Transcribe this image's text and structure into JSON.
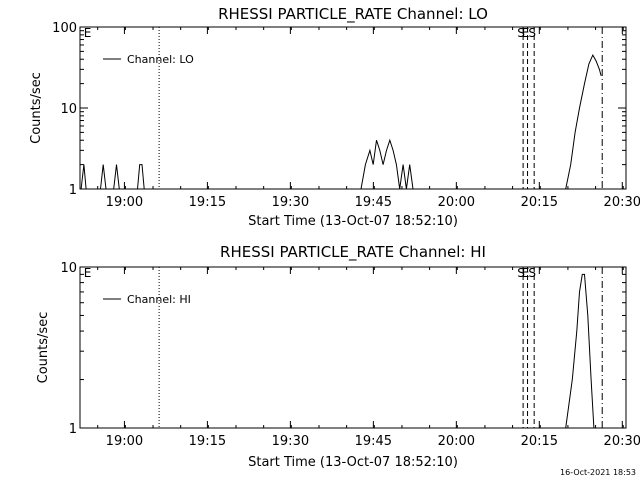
{
  "chart_data": [
    {
      "type": "line",
      "title": "RHESSI PARTICLE_RATE Channel: LO",
      "xlabel": "Start Time (13-Oct-07 18:52:10)",
      "ylabel": "Counts/sec",
      "yscale": "log",
      "ylim": [
        1,
        100
      ],
      "xlim_minutes": [
        -0.2,
        98.5
      ],
      "x_unit": "minutes since 18:52:10",
      "xticks": [
        {
          "label": "19:00",
          "value": 7.83
        },
        {
          "label": "19:15",
          "value": 22.83
        },
        {
          "label": "19:30",
          "value": 37.83
        },
        {
          "label": "19:45",
          "value": 52.83
        },
        {
          "label": "20:00",
          "value": 67.83
        },
        {
          "label": "20:15",
          "value": 82.83
        },
        {
          "label": "20:30",
          "value": 97.83
        }
      ],
      "yticks": [
        {
          "label": "1",
          "value": 1
        },
        {
          "label": "10",
          "value": 10
        },
        {
          "label": "100",
          "value": 100
        }
      ],
      "legend": {
        "placement": "top-left",
        "entries": [
          "Channel: LO"
        ]
      },
      "markers": [
        {
          "label": "E",
          "x": 0.3,
          "style": "none"
        },
        {
          "label": "",
          "x": 14.1,
          "style": "dotted"
        },
        {
          "label": "S",
          "x": 79.9,
          "style": "dashed"
        },
        {
          "label": "E",
          "x": 80.7,
          "style": "dashed"
        },
        {
          "label": "S",
          "x": 81.9,
          "style": "dashed"
        },
        {
          "label": "",
          "x": 94.2,
          "style": "dashdot"
        }
      ],
      "series": [
        {
          "name": "Channel: LO",
          "segments": [
            [
              [
                0.0,
                1
              ],
              [
                0.5,
                2
              ],
              [
                0.9,
                1
              ]
            ],
            [
              [
                3.5,
                1
              ],
              [
                4.0,
                2
              ],
              [
                4.5,
                1
              ]
            ],
            [
              [
                5.9,
                1
              ],
              [
                6.4,
                2
              ],
              [
                6.9,
                1
              ]
            ],
            [
              [
                10.2,
                1
              ],
              [
                10.6,
                2
              ],
              [
                11.0,
                2
              ],
              [
                11.4,
                1
              ]
            ],
            [
              [
                50.6,
                1
              ],
              [
                51.4,
                2
              ],
              [
                52.2,
                3
              ],
              [
                52.8,
                2
              ],
              [
                53.4,
                4
              ],
              [
                54.0,
                3
              ],
              [
                54.6,
                2
              ],
              [
                55.2,
                3
              ],
              [
                55.8,
                4
              ],
              [
                56.4,
                3
              ],
              [
                57.0,
                2
              ],
              [
                57.6,
                1
              ],
              [
                58.2,
                2
              ],
              [
                58.8,
                1
              ],
              [
                59.4,
                2
              ],
              [
                60.0,
                1
              ]
            ],
            [
              [
                87.6,
                1
              ],
              [
                88.5,
                2
              ],
              [
                89.3,
                5
              ],
              [
                90.1,
                10
              ],
              [
                91.0,
                20
              ],
              [
                91.8,
                35
              ],
              [
                92.5,
                45
              ],
              [
                93.1,
                38
              ],
              [
                93.7,
                30
              ],
              [
                94.0,
                25
              ]
            ]
          ]
        }
      ]
    },
    {
      "type": "line",
      "title": "RHESSI PARTICLE_RATE Channel: HI",
      "xlabel": "Start Time (13-Oct-07 18:52:10)",
      "ylabel": "Counts/sec",
      "yscale": "log",
      "ylim": [
        1,
        10
      ],
      "xlim_minutes": [
        -0.2,
        98.5
      ],
      "x_unit": "minutes since 18:52:10",
      "xticks": [
        {
          "label": "19:00",
          "value": 7.83
        },
        {
          "label": "19:15",
          "value": 22.83
        },
        {
          "label": "19:30",
          "value": 37.83
        },
        {
          "label": "19:45",
          "value": 52.83
        },
        {
          "label": "20:00",
          "value": 67.83
        },
        {
          "label": "20:15",
          "value": 82.83
        },
        {
          "label": "20:30",
          "value": 97.83
        }
      ],
      "yticks": [
        {
          "label": "1",
          "value": 1
        },
        {
          "label": "10",
          "value": 10
        }
      ],
      "legend": {
        "placement": "top-left",
        "entries": [
          "Channel: HI"
        ]
      },
      "markers": [
        {
          "label": "E",
          "x": 0.3,
          "style": "none"
        },
        {
          "label": "",
          "x": 14.1,
          "style": "dotted"
        },
        {
          "label": "S",
          "x": 79.9,
          "style": "dashed"
        },
        {
          "label": "E",
          "x": 80.7,
          "style": "dashed"
        },
        {
          "label": "S",
          "x": 81.9,
          "style": "dashed"
        },
        {
          "label": "",
          "x": 94.2,
          "style": "dashdot"
        }
      ],
      "series": [
        {
          "name": "Channel: HI",
          "segments": [
            [
              [
                87.6,
                1
              ],
              [
                88.8,
                2
              ],
              [
                89.6,
                4
              ],
              [
                90.1,
                7
              ],
              [
                90.6,
                9
              ],
              [
                91.0,
                9
              ],
              [
                91.6,
                5
              ],
              [
                92.2,
                2
              ],
              [
                92.7,
                1
              ]
            ]
          ]
        }
      ]
    }
  ],
  "footer": {
    "stamp": "16-Oct-2021 18:53"
  }
}
